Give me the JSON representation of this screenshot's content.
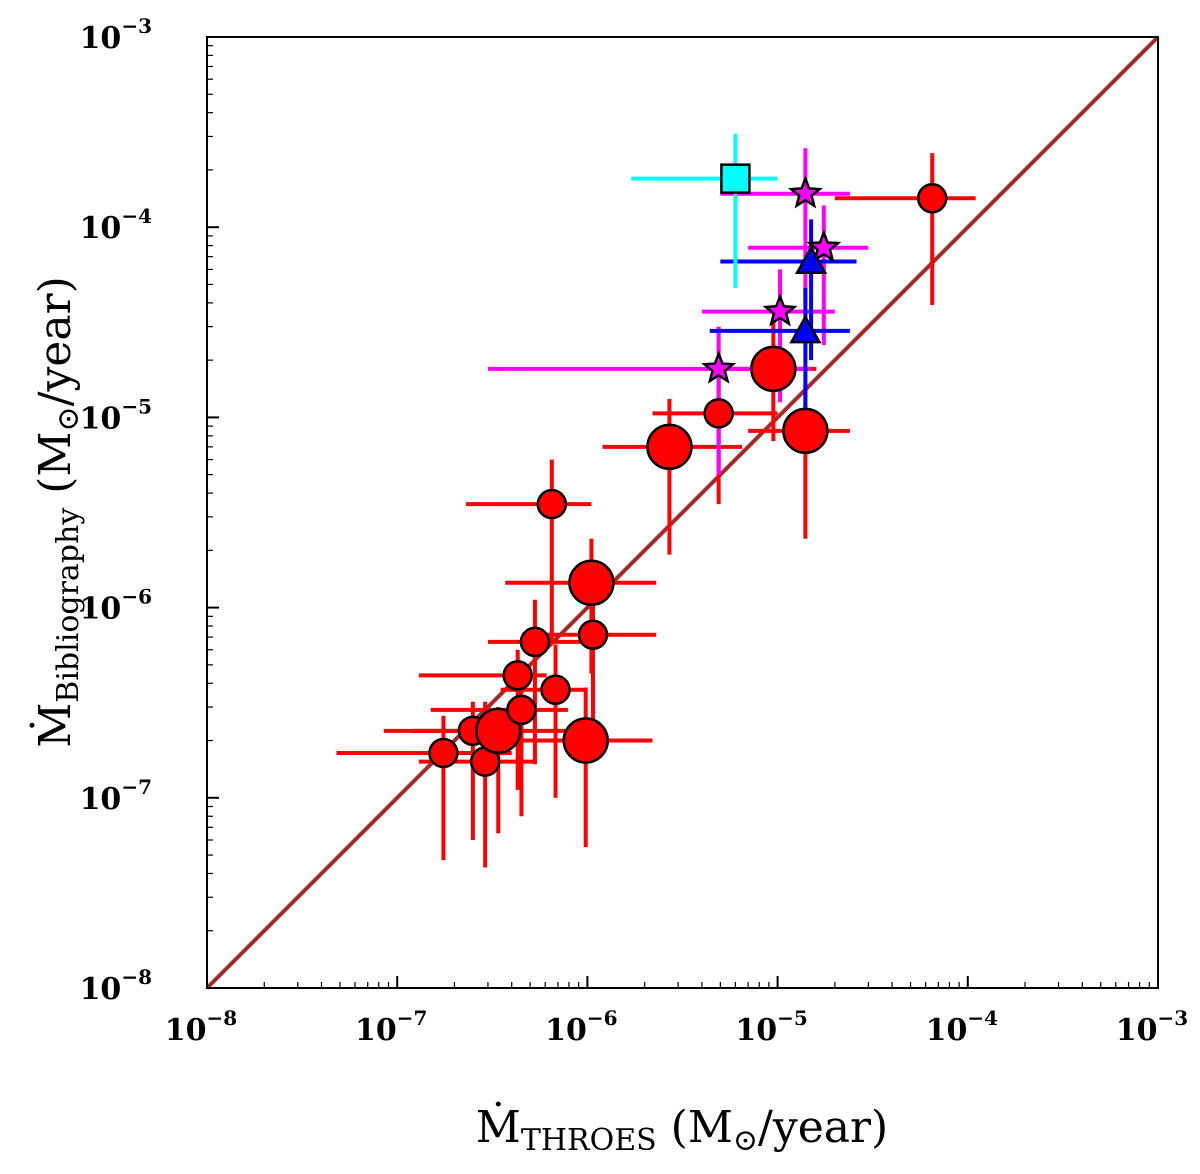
{
  "chart_data": {
    "type": "scatter",
    "scale": "log-log",
    "xlim": [
      1e-08,
      0.001
    ],
    "ylim": [
      1e-08,
      0.001
    ],
    "xlabel": {
      "main": "Ṁ",
      "sub": "THROES",
      "units": " (M",
      "sun": "⊙",
      "tail": "/year)"
    },
    "ylabel": {
      "main": "Ṁ",
      "sub": "Bibliography",
      "units": " (M",
      "sun": "⊙",
      "tail": "/year)"
    },
    "x_ticks": [
      {
        "value": 1e-08,
        "base": "10",
        "exp": "−8"
      },
      {
        "value": 1e-07,
        "base": "10",
        "exp": "−7"
      },
      {
        "value": 1e-06,
        "base": "10",
        "exp": "−6"
      },
      {
        "value": 1e-05,
        "base": "10",
        "exp": "−5"
      },
      {
        "value": 0.0001,
        "base": "10",
        "exp": "−4"
      },
      {
        "value": 0.001,
        "base": "10",
        "exp": "−3"
      }
    ],
    "y_ticks": [
      {
        "value": 1e-08,
        "base": "10",
        "exp": "−8"
      },
      {
        "value": 1e-07,
        "base": "10",
        "exp": "−7"
      },
      {
        "value": 1e-06,
        "base": "10",
        "exp": "−6"
      },
      {
        "value": 1e-05,
        "base": "10",
        "exp": "−5"
      },
      {
        "value": 0.0001,
        "base": "10",
        "exp": "−4"
      },
      {
        "value": 0.001,
        "base": "10",
        "exp": "−3"
      }
    ],
    "reference_line": {
      "type": "one-to-one",
      "color": "#a52a2a"
    },
    "series": [
      {
        "name": "red circles",
        "marker": "circle",
        "color": "#ff0000",
        "points": [
          {
            "x": 1.75e-07,
            "y": 1.72e-07,
            "xerr": [
              4.8e-08,
              4e-07
            ],
            "yerr": [
              4.7e-08,
              2.7e-07
            ],
            "size": "small"
          },
          {
            "x": 2.5e-07,
            "y": 2.25e-07,
            "xerr": [
              8.5e-08,
              3.9e-07
            ],
            "yerr": [
              6e-08,
              3.2e-07
            ],
            "size": "small"
          },
          {
            "x": 2.9e-07,
            "y": 1.55e-07,
            "xerr": [
              1.3e-07,
              5.2e-07
            ],
            "yerr": [
              4.3e-08,
              3.2e-07
            ],
            "size": "small"
          },
          {
            "x": 3.4e-07,
            "y": 2.25e-07,
            "xerr": [
              1.2e-07,
              1.1e-06
            ],
            "yerr": [
              6.5e-08,
              3e-07
            ],
            "size": "large"
          },
          {
            "x": 4.3e-07,
            "y": 4.4e-07,
            "xerr": [
              1.3e-07,
              6.1e-07
            ],
            "yerr": [
              1.1e-07,
              6e-07
            ],
            "size": "small"
          },
          {
            "x": 4.5e-07,
            "y": 2.9e-07,
            "xerr": [
              1.5e-07,
              7.9e-07
            ],
            "yerr": [
              8e-08,
              4.6e-07
            ],
            "size": "small"
          },
          {
            "x": 5.3e-07,
            "y": 6.6e-07,
            "xerr": [
              3e-07,
              1e-06
            ],
            "yerr": [
              1.5e-07,
              1.1e-06
            ],
            "size": "small"
          },
          {
            "x": 6.8e-07,
            "y": 3.7e-07,
            "xerr": [
              3.5e-07,
              1e-06
            ],
            "yerr": [
              1e-07,
              6.4e-07
            ],
            "size": "small"
          },
          {
            "x": 9.8e-07,
            "y": 2e-07,
            "xerr": [
              2.3e-07,
              2.2e-06
            ],
            "yerr": [
              5.5e-08,
              3.8e-07
            ],
            "size": "large"
          },
          {
            "x": 1.07e-06,
            "y": 7.2e-07,
            "xerr": [
              6e-07,
              2.3e-06
            ],
            "yerr": [
              1.9e-07,
              1.4e-06
            ],
            "size": "small"
          },
          {
            "x": 6.5e-07,
            "y": 3.5e-06,
            "xerr": [
              2.3e-07,
              1.05e-06
            ],
            "yerr": [
              6.5e-07,
              6e-06
            ],
            "size": "small"
          },
          {
            "x": 1.05e-06,
            "y": 1.35e-06,
            "xerr": [
              3.7e-07,
              2.3e-06
            ],
            "yerr": [
              4.5e-07,
              2.3e-06
            ],
            "size": "large"
          },
          {
            "x": 2.7e-06,
            "y": 7e-06,
            "xerr": [
              1.2e-06,
              6.5e-06
            ],
            "yerr": [
              1.9e-06,
              1.25e-05
            ],
            "size": "large"
          },
          {
            "x": 4.9e-06,
            "y": 1.05e-05,
            "xerr": [
              2.2e-06,
              1e-05
            ],
            "yerr": [
              3.5e-06,
              1.8e-05
            ],
            "size": "small"
          },
          {
            "x": 9.5e-06,
            "y": 1.8e-05,
            "xerr": [
              4.8e-06,
              1.6e-05
            ],
            "yerr": [
              7.5e-06,
              3.2e-05
            ],
            "size": "large"
          },
          {
            "x": 1.4e-05,
            "y": 8.5e-06,
            "xerr": [
              7e-06,
              2.4e-05
            ],
            "yerr": [
              2.3e-06,
              1.5e-05
            ],
            "size": "large"
          },
          {
            "x": 6.5e-05,
            "y": 0.000142,
            "xerr": [
              2e-05,
              0.00011
            ],
            "yerr": [
              3.9e-05,
              0.000245
            ],
            "size": "small"
          }
        ]
      },
      {
        "name": "magenta stars",
        "marker": "star",
        "color": "#ff00ff",
        "points": [
          {
            "x": 4.9e-06,
            "y": 1.8e-05,
            "xerr": [
              3e-07,
              1.5e-05
            ],
            "yerr": [
              5e-06,
              3e-05
            ]
          },
          {
            "x": 1.03e-05,
            "y": 3.6e-05,
            "xerr": [
              4e-06,
              2e-05
            ],
            "yerr": [
              1.2e-05,
              6e-05
            ]
          },
          {
            "x": 1.4e-05,
            "y": 0.00015,
            "xerr": [
              5e-06,
              2.4e-05
            ],
            "yerr": [
              4e-05,
              0.00026
            ]
          },
          {
            "x": 1.75e-05,
            "y": 7.8e-05,
            "xerr": [
              7e-06,
              3e-05
            ],
            "yerr": [
              2.4e-05,
              0.00013
            ]
          }
        ]
      },
      {
        "name": "blue triangles",
        "marker": "triangle",
        "color": "#0000ff",
        "points": [
          {
            "x": 1.4e-05,
            "y": 2.85e-05,
            "xerr": [
              4.4e-06,
              2.4e-05
            ],
            "yerr": [
              1e-05,
              4.8e-05
            ]
          },
          {
            "x": 1.5e-05,
            "y": 6.6e-05,
            "xerr": [
              5e-06,
              2.6e-05
            ],
            "yerr": [
              2e-05,
              0.00011
            ]
          }
        ]
      },
      {
        "name": "cyan square",
        "marker": "square",
        "color": "#00ffff",
        "points": [
          {
            "x": 6e-06,
            "y": 0.00018,
            "xerr": [
              1.7e-06,
              1e-05
            ],
            "yerr": [
              4.8e-05,
              0.00031
            ]
          }
        ]
      }
    ]
  }
}
